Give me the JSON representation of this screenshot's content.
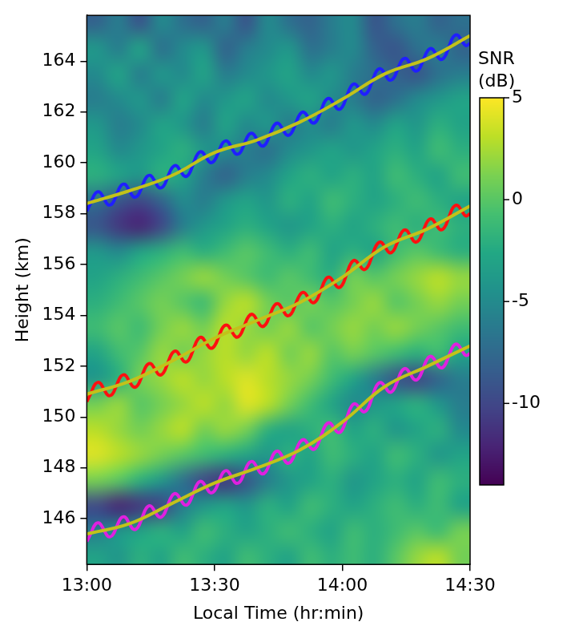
{
  "chart_data": {
    "type": "heatmap",
    "x_label": "Local Time (hr:min)",
    "y_label": "Height (km)",
    "xlim": [
      780,
      870
    ],
    "ylim": [
      144.2,
      165.8
    ],
    "xticks": [
      {
        "value": 780,
        "label": "13:00"
      },
      {
        "value": 810,
        "label": "13:30"
      },
      {
        "value": 840,
        "label": "14:00"
      },
      {
        "value": 870,
        "label": "14:30"
      }
    ],
    "yticks": [
      146,
      148,
      150,
      152,
      154,
      156,
      158,
      160,
      162,
      164
    ],
    "grid": false,
    "x": [
      780,
      781,
      782,
      783,
      784,
      785,
      786,
      787,
      788,
      789,
      790,
      791,
      792,
      793,
      794,
      795,
      796,
      797,
      798,
      799,
      800,
      801,
      802,
      803,
      804,
      805,
      806,
      807,
      808,
      809,
      810,
      811,
      812,
      813,
      814,
      815,
      816,
      817,
      818,
      819,
      820,
      821,
      822,
      823,
      824,
      825,
      826,
      827,
      828,
      829,
      830,
      831,
      832,
      833,
      834,
      835,
      836,
      837,
      838,
      839,
      840,
      841,
      842,
      843,
      844,
      845,
      846,
      847,
      848,
      849,
      850,
      851,
      852,
      853,
      854,
      855,
      856,
      857,
      858,
      859,
      860,
      861,
      862,
      863,
      864,
      865,
      866,
      867,
      868,
      869,
      870
    ],
    "series": [
      {
        "type": "line",
        "color": "#1f1fff",
        "values": [
          158.1,
          158.45,
          158.8,
          158.85,
          158.6,
          158.35,
          158.4,
          158.75,
          159.1,
          159.15,
          158.9,
          158.66,
          158.72,
          159.08,
          159.44,
          159.5,
          159.26,
          159.02,
          159.08,
          159.44,
          159.8,
          159.89,
          159.68,
          159.47,
          159.56,
          159.95,
          160.34,
          160.43,
          160.22,
          160.01,
          160.1,
          160.45,
          160.8,
          160.85,
          160.6,
          160.35,
          160.4,
          160.75,
          161.1,
          161.15,
          160.9,
          160.67,
          160.74,
          161.11,
          161.48,
          161.55,
          161.32,
          161.09,
          161.16,
          161.53,
          161.9,
          161.99,
          161.78,
          161.57,
          161.66,
          162.05,
          162.44,
          162.53,
          162.32,
          162.11,
          162.2,
          162.6,
          163.0,
          163.1,
          162.9,
          162.7,
          162.8,
          163.2,
          163.6,
          163.7,
          163.5,
          163.26,
          163.32,
          163.68,
          164.04,
          164.1,
          163.86,
          163.62,
          163.68,
          164.04,
          164.4,
          164.49,
          164.28,
          164.07,
          164.16,
          164.55,
          164.94,
          165.03,
          164.82,
          164.61,
          164.7
        ]
      },
      {
        "type": "line",
        "color": "#ff1010",
        "values": [
          150.6,
          150.95,
          151.3,
          151.35,
          151.1,
          150.85,
          150.9,
          151.25,
          151.6,
          151.65,
          151.4,
          151.18,
          151.26,
          151.64,
          152.02,
          152.1,
          151.88,
          151.66,
          151.74,
          152.12,
          152.5,
          152.59,
          152.38,
          152.17,
          152.26,
          152.65,
          153.04,
          153.13,
          152.92,
          152.71,
          152.8,
          153.17,
          153.54,
          153.61,
          153.38,
          153.15,
          153.22,
          153.59,
          153.96,
          154.03,
          153.8,
          153.57,
          153.64,
          154.01,
          154.38,
          154.45,
          154.22,
          153.99,
          154.06,
          154.43,
          154.8,
          154.9,
          154.7,
          154.5,
          154.6,
          155.0,
          155.4,
          155.5,
          155.3,
          155.1,
          155.2,
          155.62,
          156.04,
          156.16,
          155.98,
          155.8,
          155.92,
          156.34,
          156.76,
          156.88,
          156.7,
          156.47,
          156.54,
          156.91,
          157.28,
          157.35,
          157.12,
          156.89,
          156.96,
          157.33,
          157.7,
          157.79,
          157.58,
          157.37,
          157.46,
          157.85,
          158.24,
          158.33,
          158.12,
          157.91,
          158.0
        ]
      },
      {
        "type": "line",
        "color": "#e020e0",
        "values": [
          145.1,
          145.44,
          145.78,
          145.82,
          145.56,
          145.3,
          145.34,
          145.68,
          146.02,
          146.06,
          145.8,
          145.58,
          145.66,
          146.04,
          146.42,
          146.5,
          146.28,
          146.06,
          146.14,
          146.52,
          146.9,
          146.98,
          146.76,
          146.54,
          146.62,
          147.0,
          147.38,
          147.46,
          147.24,
          147.02,
          147.1,
          147.46,
          147.82,
          147.88,
          147.64,
          147.4,
          147.46,
          147.82,
          148.18,
          148.24,
          148.0,
          147.77,
          147.84,
          148.21,
          148.58,
          148.65,
          148.42,
          148.19,
          148.26,
          148.63,
          149.0,
          149.11,
          148.92,
          148.73,
          148.84,
          149.25,
          149.66,
          149.77,
          149.58,
          149.39,
          149.5,
          149.94,
          150.38,
          150.52,
          150.36,
          150.2,
          150.34,
          150.78,
          151.22,
          151.36,
          151.2,
          150.98,
          151.06,
          151.44,
          151.82,
          151.9,
          151.68,
          151.46,
          151.54,
          151.92,
          152.3,
          152.38,
          152.16,
          151.94,
          152.02,
          152.4,
          152.78,
          152.86,
          152.64,
          152.42,
          152.5
        ]
      },
      {
        "type": "line",
        "color": "#c2c21a",
        "x": [
          780,
          790,
          800,
          810,
          820,
          830,
          840,
          850,
          860,
          870
        ],
        "values": [
          158.4,
          158.9,
          159.5,
          160.4,
          160.9,
          161.6,
          162.5,
          163.5,
          164.1,
          165.0
        ]
      },
      {
        "type": "line",
        "color": "#c2c21a",
        "x": [
          780,
          790,
          800,
          810,
          820,
          830,
          840,
          850,
          860,
          870
        ],
        "values": [
          150.9,
          151.4,
          152.2,
          153.1,
          153.8,
          154.5,
          155.5,
          156.7,
          157.4,
          158.3
        ]
      },
      {
        "type": "line",
        "color": "#c2c21a",
        "x": [
          780,
          790,
          800,
          810,
          820,
          830,
          840,
          850,
          860,
          870
        ],
        "values": [
          145.4,
          145.8,
          146.6,
          147.4,
          148.0,
          148.7,
          149.8,
          151.2,
          152.0,
          152.8
        ]
      }
    ],
    "heatmap": {
      "x_edges": [
        780,
        785,
        790,
        795,
        800,
        805,
        810,
        815,
        820,
        825,
        830,
        835,
        840,
        845,
        850,
        855,
        860,
        865,
        870
      ],
      "y_edges": [
        144,
        145,
        146,
        147,
        148,
        149,
        150,
        151,
        152,
        153,
        154,
        155,
        156,
        157,
        158,
        159,
        160,
        161,
        162,
        163,
        164,
        165,
        166
      ],
      "values": [
        [
          -3,
          -4,
          -2,
          -3,
          -1,
          -2,
          -3,
          -1,
          -2,
          -3,
          -1,
          -2,
          -1,
          -2,
          0,
          2,
          3,
          1
        ],
        [
          -6,
          -4,
          -3,
          -2,
          -3,
          -1,
          -2,
          -3,
          -2,
          -1,
          -2,
          -3,
          -1,
          -2,
          -1,
          0,
          -1,
          1
        ],
        [
          -10,
          -12,
          -11,
          -10,
          -6,
          -4,
          -3,
          -4,
          -2,
          -3,
          -1,
          -2,
          -3,
          -2,
          -1,
          -2,
          -1,
          -3
        ],
        [
          1,
          0,
          -2,
          -4,
          -7,
          -10,
          -11,
          -9,
          -6,
          -4,
          -3,
          -2,
          -4,
          -3,
          -2,
          -3,
          -1,
          -2
        ],
        [
          4,
          3,
          2,
          1,
          0,
          -1,
          -2,
          -3,
          -4,
          -2,
          -3,
          -1,
          -2,
          -3,
          -1,
          -2,
          -4,
          -3
        ],
        [
          3,
          2,
          1,
          2,
          3,
          1,
          2,
          1,
          -2,
          -3,
          -2,
          -1,
          -3,
          -2,
          -4,
          -3,
          -2,
          -5
        ],
        [
          1,
          2,
          0,
          1,
          2,
          3,
          2,
          4,
          3,
          1,
          -1,
          -3,
          -5,
          -4,
          -3,
          -2,
          -4,
          -6
        ],
        [
          -4,
          -2,
          1,
          2,
          3,
          2,
          3,
          4,
          3,
          2,
          1,
          -1,
          -3,
          -6,
          -9,
          -10,
          -8,
          -6
        ],
        [
          -3,
          -1,
          0,
          2,
          1,
          2,
          3,
          2,
          3,
          1,
          2,
          0,
          1,
          0,
          -1,
          -2,
          -1,
          -3
        ],
        [
          -1,
          0,
          -1,
          1,
          2,
          1,
          3,
          2,
          1,
          2,
          0,
          1,
          2,
          1,
          2,
          1,
          0,
          -1
        ],
        [
          -2,
          -1,
          0,
          1,
          0,
          -1,
          2,
          3,
          1,
          0,
          1,
          0,
          1,
          2,
          0,
          1,
          2,
          1
        ],
        [
          -3,
          -2,
          -1,
          0,
          1,
          2,
          1,
          0,
          -1,
          0,
          -1,
          -2,
          1,
          0,
          1,
          2,
          3,
          2
        ],
        [
          -4,
          -5,
          -3,
          -2,
          -1,
          -2,
          -1,
          0,
          -1,
          -2,
          -1,
          -3,
          -2,
          -3,
          -1,
          0,
          -1,
          -2
        ],
        [
          -9,
          -11,
          -12,
          -10,
          -6,
          -4,
          -3,
          -2,
          -3,
          -4,
          -3,
          -2,
          -3,
          -2,
          -1,
          -2,
          -1,
          -2
        ],
        [
          -7,
          -9,
          -10,
          -8,
          -5,
          -6,
          -4,
          -3,
          -4,
          -2,
          -3,
          -1,
          -2,
          -3,
          -2,
          -1,
          -2,
          -3
        ],
        [
          -2,
          -3,
          -4,
          -2,
          -3,
          -6,
          -8,
          -6,
          -5,
          -3,
          -2,
          -3,
          -2,
          -3,
          -1,
          -2,
          -3,
          -1
        ],
        [
          -3,
          -5,
          -4,
          -3,
          -2,
          -4,
          -5,
          -6,
          -7,
          -5,
          -4,
          -3,
          -4,
          -3,
          -2,
          -3,
          -1,
          -2
        ],
        [
          -4,
          -6,
          -5,
          -3,
          -4,
          -6,
          -3,
          -5,
          -4,
          -6,
          -5,
          -6,
          -4,
          -5,
          -3,
          -4,
          -2,
          -3
        ],
        [
          -6,
          -5,
          -4,
          -6,
          -3,
          -5,
          -4,
          -3,
          -5,
          -4,
          -3,
          -5,
          -6,
          -8,
          -7,
          -5,
          -4,
          -3
        ],
        [
          -5,
          -3,
          -6,
          -4,
          -5,
          -3,
          -6,
          -5,
          -4,
          -3,
          -5,
          -4,
          -6,
          -7,
          -8,
          -9,
          -7,
          -6
        ],
        [
          -4,
          -6,
          -3,
          -7,
          -5,
          -4,
          -8,
          -6,
          -5,
          -4,
          -7,
          -6,
          -5,
          -8,
          -9,
          -7,
          -6,
          -8
        ],
        [
          -8,
          -6,
          -9,
          -5,
          -7,
          -8,
          -6,
          -9,
          -5,
          -7,
          -8,
          -6,
          -5,
          -9,
          -7,
          -6,
          -8,
          -7
        ]
      ],
      "color_range": [
        -14,
        5
      ],
      "color_ticks": [
        -10,
        -5,
        0,
        5
      ],
      "color_label": "SNR (dB)"
    }
  }
}
